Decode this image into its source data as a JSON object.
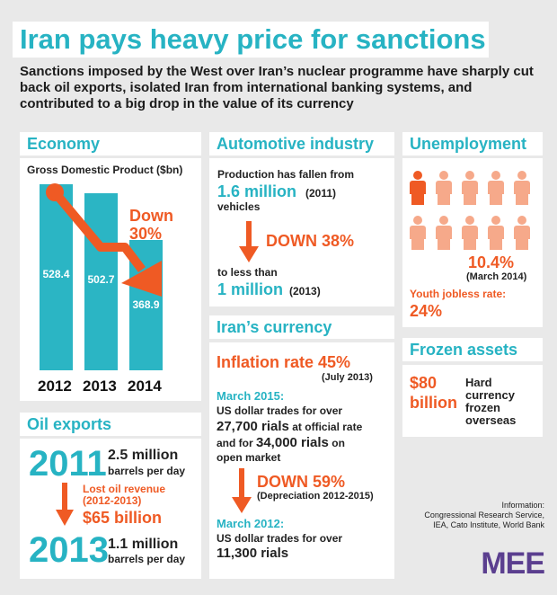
{
  "title": "Iran pays heavy price for sanctions",
  "intro": "Sanctions imposed by the West over Iran’s nuclear programme have sharply cut back oil exports, isolated Iran from international banking systems, and contributed to a big drop in the value of its currency",
  "economy": {
    "header": "Economy",
    "chart_label": "Gross Domestic Product ($bn)",
    "callout_line1": "Down",
    "callout_line2": "30%"
  },
  "chart_data": {
    "type": "bar",
    "title": "Gross Domestic Product ($bn)",
    "categories": [
      "2012",
      "2013",
      "2014"
    ],
    "values": [
      528.4,
      502.7,
      368.9
    ],
    "value_labels": [
      "528.4",
      "502.7",
      "368.9"
    ],
    "ylim": [
      0,
      528.4
    ]
  },
  "oil": {
    "header": "Oil exports",
    "year1": "2011",
    "amount1": "2.5 million",
    "unit1": "barrels per day",
    "lost_label1": "Lost oil revenue",
    "lost_label2": "(2012-2013)",
    "lost_value": "$65 billion",
    "year2": "2013",
    "amount2": "1.1 million",
    "unit2": "barrels per day"
  },
  "auto": {
    "header": "Automotive industry",
    "line1": "Production has fallen from",
    "value1": "1.6 million",
    "year1": "(2011)",
    "unit1": "vehicles",
    "drop": "DOWN 38%",
    "line2": "to less than",
    "value2": "1 million",
    "year2": "(2013)"
  },
  "currency": {
    "header": "Iran’s currency",
    "inflation": "Inflation rate 45%",
    "inflation_date": "(July 2013)",
    "date1": "March 2015:",
    "text1a": "US dollar trades for over",
    "text1b_value": "27,700 rials",
    "text1b_rest": " at official rate",
    "text1c_pre": "and for ",
    "text1c_value": "34,000 rials",
    "text1c_rest": " on",
    "text1d": "open market",
    "drop": "DOWN 59%",
    "drop_note": "(Depreciation 2012-2015)",
    "date2": "March 2012:",
    "text2a": "US dollar trades for over",
    "text2b": "11,300 rials"
  },
  "unemployment": {
    "header": "Unemployment",
    "rate": "10.4%",
    "rate_date": "(March 2014)",
    "youth_label": "Youth jobless rate:",
    "youth_rate": "24%"
  },
  "frozen": {
    "header": "Frozen assets",
    "amount1": "$80",
    "amount2": "billion",
    "desc1": "Hard",
    "desc2": "currency",
    "desc3": "frozen",
    "desc4": "overseas"
  },
  "source": {
    "line1": "Information:",
    "line2": "Congressional Research Service,",
    "line3": "IEA, Cato Institute, World Bank"
  },
  "logo": "MEE",
  "colors": {
    "teal": "#27b3c3",
    "orange": "#ef5a24",
    "peach": "#f6a98a",
    "logo_purple": "#5b3f8f"
  }
}
